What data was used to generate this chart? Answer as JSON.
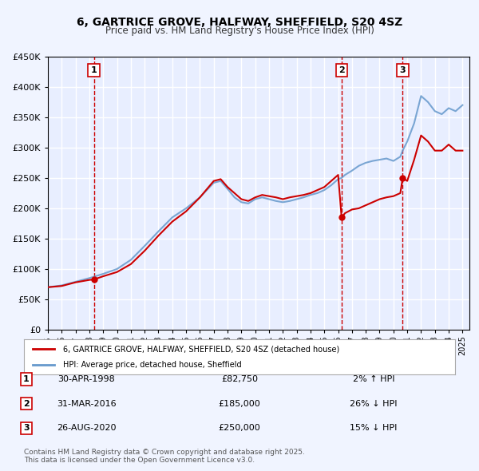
{
  "title": "6, GARTRICE GROVE, HALFWAY, SHEFFIELD, S20 4SZ",
  "subtitle": "Price paid vs. HM Land Registry's House Price Index (HPI)",
  "xlabel": "",
  "ylabel": "",
  "ylim": [
    0,
    450000
  ],
  "xlim_start": 1995.0,
  "xlim_end": 2025.5,
  "background_color": "#f0f4ff",
  "plot_bg_color": "#e8eeff",
  "grid_color": "#ffffff",
  "legend_label_red": "6, GARTRICE GROVE, HALFWAY, SHEFFIELD, S20 4SZ (detached house)",
  "legend_label_blue": "HPI: Average price, detached house, Sheffield",
  "sale_markers": [
    {
      "num": 1,
      "date_x": 1998.33,
      "price": 82750,
      "label": "30-APR-1998",
      "price_str": "£82,750",
      "pct": "2% ↑ HPI"
    },
    {
      "num": 2,
      "date_x": 2016.25,
      "price": 185000,
      "label": "31-MAR-2016",
      "price_str": "£185,000",
      "pct": "26% ↓ HPI"
    },
    {
      "num": 3,
      "date_x": 2020.67,
      "price": 250000,
      "label": "26-AUG-2020",
      "price_str": "£250,000",
      "pct": "15% ↓ HPI"
    }
  ],
  "footer": "Contains HM Land Registry data © Crown copyright and database right 2025.\nThis data is licensed under the Open Government Licence v3.0.",
  "red_color": "#cc0000",
  "blue_color": "#6699cc",
  "vline_color": "#cc0000"
}
